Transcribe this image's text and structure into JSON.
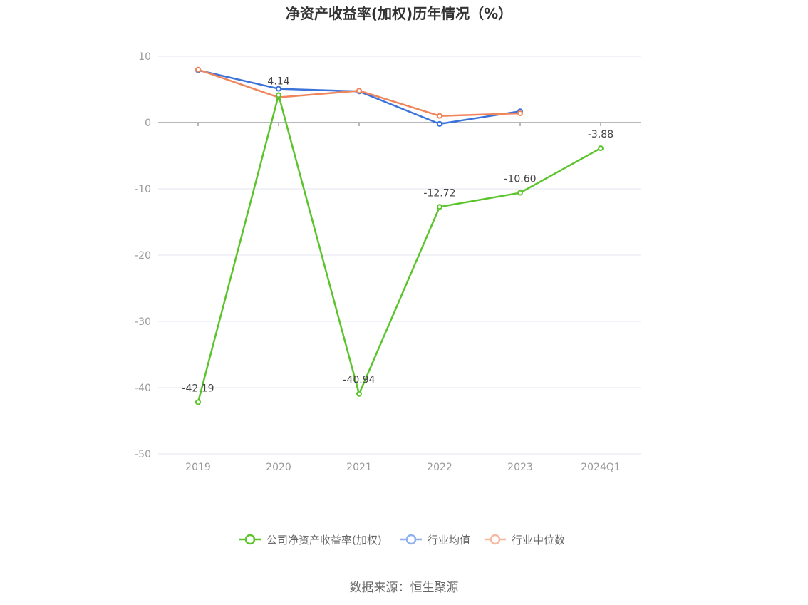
{
  "chart_data": {
    "type": "line",
    "title": "净资产收益率(加权)历年情况（%）",
    "categories": [
      "2019",
      "2020",
      "2021",
      "2022",
      "2023",
      "2024Q1"
    ],
    "ylim": [
      -50,
      10
    ],
    "yticks": [
      10,
      0,
      -10,
      -20,
      -30,
      -40,
      -50
    ],
    "grid": true,
    "legend_position": "bottom",
    "series": [
      {
        "name": "公司净资产收益率(加权)",
        "color": "#5bc42b",
        "values": [
          -42.19,
          4.14,
          -40.94,
          -12.72,
          -10.6,
          -3.88
        ],
        "data_labels": [
          "-42.19",
          "4.14",
          "-40.94",
          "-12.72",
          "-10.60",
          "-3.88"
        ]
      },
      {
        "name": "行业均值",
        "color": "#3b73db",
        "legend_color": "#8fb0ef",
        "values": [
          7.9,
          5.1,
          4.7,
          -0.2,
          1.7,
          null
        ]
      },
      {
        "name": "行业中位数",
        "color": "#f0845a",
        "legend_color": "#f7b8a0",
        "values": [
          8.0,
          3.8,
          4.8,
          1.0,
          1.4,
          null
        ]
      }
    ]
  },
  "source": "数据来源：恒生聚源"
}
